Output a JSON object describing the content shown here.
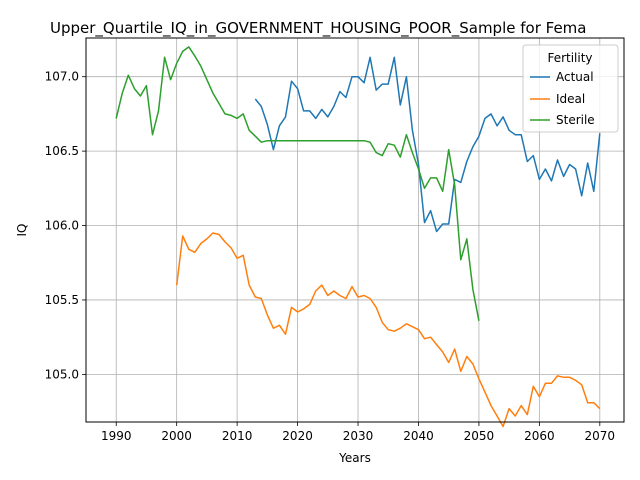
{
  "chart_data": {
    "type": "line",
    "title": "Upper_Quartile_IQ_in_GOVERNMENT_HOUSING_POOR_Sample for Fema",
    "xlabel": "Years",
    "ylabel": "IQ",
    "xlim": [
      1985,
      2074
    ],
    "ylim": [
      104.68,
      107.26
    ],
    "x_ticks": [
      1990,
      2000,
      2010,
      2020,
      2030,
      2040,
      2050,
      2060,
      2070
    ],
    "y_ticks": [
      105.0,
      105.5,
      106.0,
      106.5,
      107.0
    ],
    "x_tick_labels": [
      "1990",
      "2000",
      "2010",
      "2020",
      "2030",
      "2040",
      "2050",
      "2060",
      "2070"
    ],
    "y_tick_labels": [
      "105.0",
      "105.5",
      "106.0",
      "106.5",
      "107.0"
    ],
    "grid": true,
    "legend": {
      "title": "Fertility",
      "position": "top-right"
    },
    "series": [
      {
        "name": "Actual",
        "color": "#1f77b4",
        "x": [
          2013,
          2014,
          2015,
          2016,
          2017,
          2018,
          2019,
          2020,
          2021,
          2022,
          2023,
          2024,
          2025,
          2026,
          2027,
          2028,
          2029,
          2030,
          2031,
          2032,
          2033,
          2034,
          2035,
          2036,
          2037,
          2038,
          2039,
          2040,
          2041,
          2042,
          2043,
          2044,
          2045,
          2046,
          2047,
          2048,
          2049,
          2050,
          2051,
          2052,
          2053,
          2054,
          2055,
          2056,
          2057,
          2058,
          2059,
          2060,
          2061,
          2062,
          2063,
          2064,
          2065,
          2066,
          2067,
          2068,
          2069,
          2070
        ],
        "values": [
          106.85,
          106.8,
          106.68,
          106.51,
          106.67,
          106.73,
          106.97,
          106.92,
          106.77,
          106.77,
          106.72,
          106.78,
          106.73,
          106.8,
          106.9,
          106.86,
          107.0,
          107.0,
          106.96,
          107.13,
          106.91,
          106.95,
          106.95,
          107.13,
          106.81,
          107.0,
          106.64,
          106.41,
          106.02,
          106.1,
          105.96,
          106.01,
          106.01,
          106.31,
          106.29,
          106.43,
          106.53,
          106.6,
          106.72,
          106.75,
          106.67,
          106.73,
          106.64,
          106.61,
          106.61,
          106.43,
          106.47,
          106.31,
          106.38,
          106.3,
          106.44,
          106.33,
          106.41,
          106.38,
          106.2,
          106.42,
          106.23,
          106.62
        ]
      },
      {
        "name": "Ideal",
        "color": "#ff7f0e",
        "x": [
          2000,
          2001,
          2002,
          2003,
          2004,
          2005,
          2006,
          2007,
          2008,
          2009,
          2010,
          2011,
          2012,
          2013,
          2014,
          2015,
          2016,
          2017,
          2018,
          2019,
          2020,
          2021,
          2022,
          2023,
          2024,
          2025,
          2026,
          2027,
          2028,
          2029,
          2030,
          2031,
          2032,
          2033,
          2034,
          2035,
          2036,
          2037,
          2038,
          2039,
          2040,
          2041,
          2042,
          2043,
          2044,
          2045,
          2046,
          2047,
          2048,
          2049,
          2050,
          2051,
          2052,
          2053,
          2054,
          2055,
          2056,
          2057,
          2058,
          2059,
          2060,
          2061,
          2062,
          2063,
          2064,
          2065,
          2066,
          2067,
          2068,
          2069,
          2070
        ],
        "values": [
          105.6,
          105.93,
          105.84,
          105.82,
          105.88,
          105.91,
          105.95,
          105.94,
          105.89,
          105.85,
          105.78,
          105.8,
          105.6,
          105.52,
          105.51,
          105.4,
          105.31,
          105.33,
          105.27,
          105.45,
          105.42,
          105.44,
          105.47,
          105.56,
          105.6,
          105.53,
          105.56,
          105.53,
          105.51,
          105.59,
          105.52,
          105.53,
          105.51,
          105.45,
          105.35,
          105.3,
          105.29,
          105.31,
          105.34,
          105.32,
          105.3,
          105.24,
          105.25,
          105.2,
          105.15,
          105.08,
          105.17,
          105.02,
          105.12,
          105.07,
          104.97,
          104.88,
          104.79,
          104.72,
          104.65,
          104.77,
          104.72,
          104.79,
          104.73,
          104.92,
          104.85,
          104.94,
          104.94,
          104.99,
          104.98,
          104.98,
          104.96,
          104.93,
          104.81,
          104.81,
          104.77
        ]
      },
      {
        "name": "Sterile",
        "color": "#2ca02c",
        "x": [
          1990,
          1991,
          1992,
          1993,
          1994,
          1995,
          1996,
          1997,
          1998,
          1999,
          2000,
          2001,
          2002,
          2003,
          2004,
          2005,
          2006,
          2007,
          2008,
          2009,
          2010,
          2011,
          2012,
          2013,
          2014,
          2015,
          2016,
          2017,
          2018,
          2019,
          2020,
          2021,
          2022,
          2023,
          2024,
          2025,
          2026,
          2027,
          2028,
          2029,
          2030,
          2031,
          2032,
          2033,
          2034,
          2035,
          2036,
          2037,
          2038,
          2039,
          2040,
          2041,
          2042,
          2043,
          2044,
          2045,
          2046,
          2047,
          2048,
          2049,
          2050
        ],
        "values": [
          106.72,
          106.89,
          107.01,
          106.92,
          106.87,
          106.94,
          106.61,
          106.77,
          107.13,
          106.98,
          107.09,
          107.17,
          107.2,
          107.14,
          107.07,
          106.98,
          106.89,
          106.82,
          106.75,
          106.74,
          106.72,
          106.75,
          106.64,
          106.6,
          106.56,
          106.57,
          106.57,
          106.57,
          106.57,
          106.57,
          106.57,
          106.57,
          106.57,
          106.57,
          106.57,
          106.57,
          106.57,
          106.57,
          106.57,
          106.57,
          106.57,
          106.57,
          106.56,
          106.49,
          106.47,
          106.55,
          106.54,
          106.46,
          106.61,
          106.49,
          106.38,
          106.25,
          106.32,
          106.32,
          106.23,
          106.51,
          106.27,
          105.77,
          105.91,
          105.57,
          105.36
        ]
      }
    ]
  }
}
